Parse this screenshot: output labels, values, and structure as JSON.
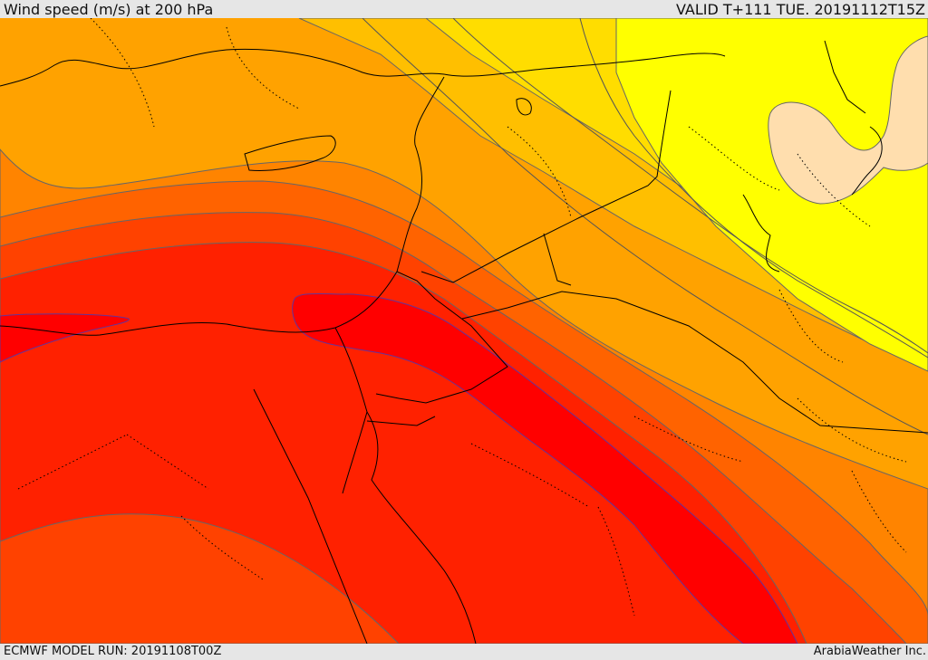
{
  "header": {
    "title": "Wind speed (m/s) at 200 hPa",
    "valid": "VALID T+111 TUE. 20191112T15Z"
  },
  "footer": {
    "model_run": "ECMWF MODEL RUN: 20191108T00Z",
    "credit": "ArabiaWeather Inc."
  },
  "map": {
    "field": "wind speed at 200 hPa",
    "colors": {
      "band_1": "#ffdeae",
      "band_2": "#ffff00",
      "band_3": "#ffdd00",
      "band_4": "#ffbf00",
      "band_5": "#ffa200",
      "band_6": "#ff8400",
      "band_7": "#ff6300",
      "band_8": "#ff4200",
      "band_9": "#ff2100",
      "band_10": "#ff0000",
      "contour_line": "#5a4a8a",
      "coastline": "#000000"
    }
  }
}
